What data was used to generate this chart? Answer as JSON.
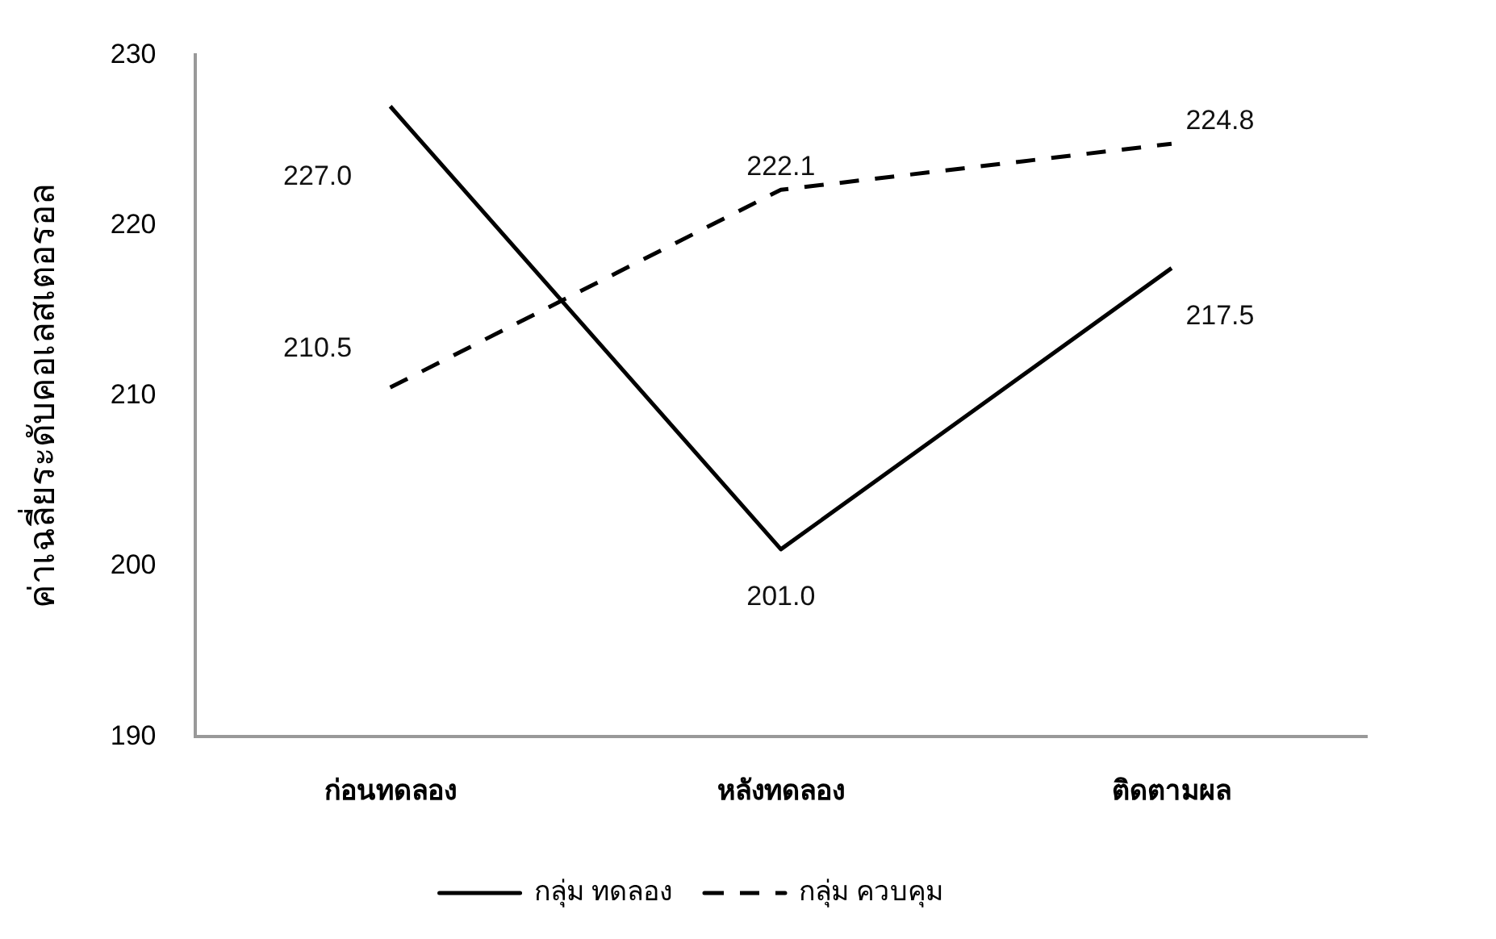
{
  "chart_data": {
    "type": "line",
    "ylabel": "ค่าเฉลี่ยระดับคอเลสเตอรอล",
    "categories": [
      "ก่อนทดลอง",
      "หลังทดลอง",
      "ติดตามผล"
    ],
    "series": [
      {
        "name": "กลุ่ม ทดลอง",
        "color": "#000000",
        "values": [
          227.0,
          201.0,
          217.5
        ],
        "value_labels": [
          "227.0",
          "201.0",
          "217.5"
        ],
        "line_style": "solid"
      },
      {
        "name": "กลุ่ม ควบคุม",
        "color": "#000000",
        "values": [
          210.5,
          222.1,
          224.8
        ],
        "value_labels": [
          "210.5",
          "222.1",
          "224.8"
        ],
        "line_style": "dashed"
      }
    ],
    "ylim": [
      190,
      230
    ],
    "yticks": [
      190,
      200,
      210,
      220,
      230
    ],
    "grid": false,
    "legend": "bottom",
    "marker": "none"
  }
}
